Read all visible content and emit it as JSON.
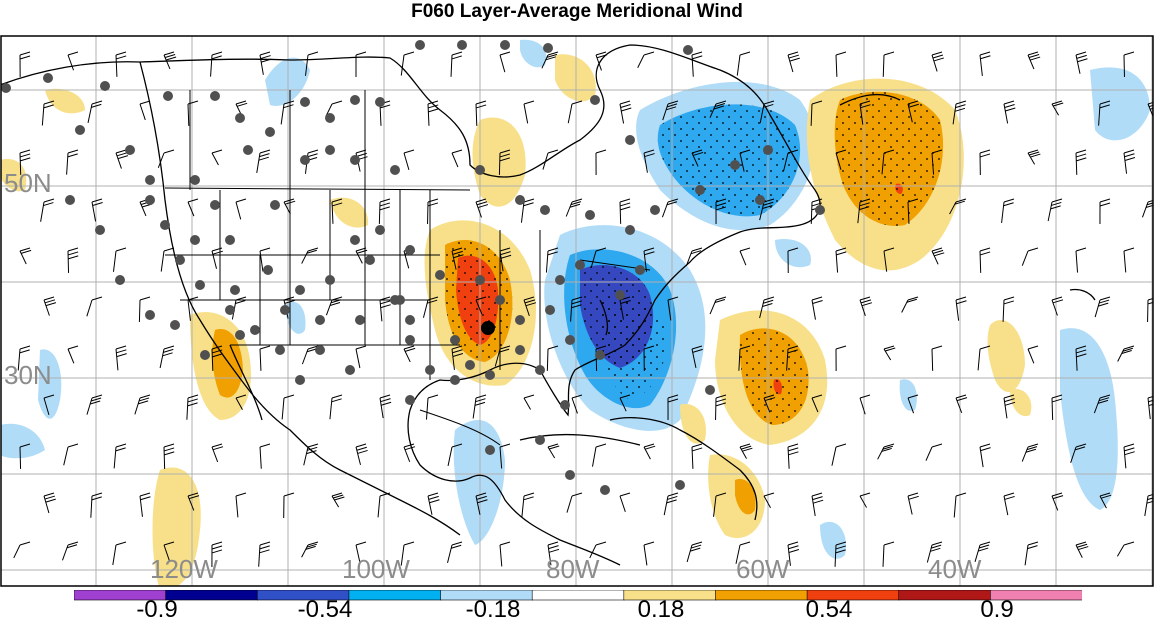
{
  "title": "F060 Layer-Average Meridional Wind",
  "lat_labels": [
    "50N",
    "30N"
  ],
  "lon_labels": [
    "120W",
    "100W",
    "80W",
    "60W",
    "40W"
  ],
  "colorbar": {
    "labels": [
      "-0.9",
      "-0.54",
      "-0.18",
      "0.18",
      "0.54",
      "0.9"
    ],
    "colors": [
      "#a040d0",
      "#000090",
      "#3050c8",
      "#00b0f0",
      "#b0dcf8",
      "#ffffff",
      "#f8e08a",
      "#f0a000",
      "#f04010",
      "#b01818",
      "#f080b0"
    ]
  },
  "colors": {
    "light_blue": "#b0dcf8",
    "mid_blue": "#2ea8ee",
    "dark_blue": "#3648c0",
    "light_yellow": "#f8e08a",
    "orange": "#f0a000",
    "red_orange": "#f04010",
    "station_dot": "#505050"
  }
}
